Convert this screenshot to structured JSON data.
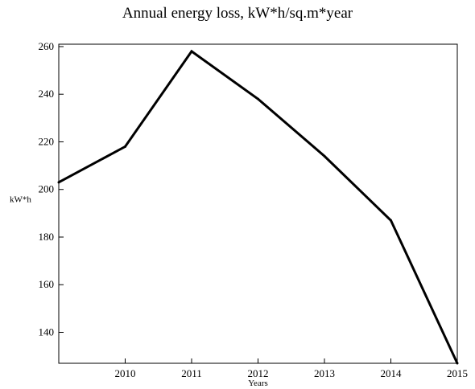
{
  "chart_data": {
    "type": "line",
    "title": "Annual energy loss, kW*h/sq.m*year",
    "xlabel": "Years",
    "ylabel": "kW*h",
    "x": [
      2009,
      2010,
      2011,
      2012,
      2013,
      2014,
      2015
    ],
    "xticks": [
      "2010",
      "2011",
      "2012",
      "2013",
      "2014",
      "2015"
    ],
    "xlim": [
      2009,
      2015
    ],
    "ylim": [
      127,
      261
    ],
    "yticks": [
      140,
      160,
      180,
      200,
      220,
      240,
      260
    ],
    "grid": false,
    "series": [
      {
        "values": [
          203,
          218,
          258,
          238,
          214,
          187,
          127
        ],
        "color": "#000000"
      }
    ]
  }
}
